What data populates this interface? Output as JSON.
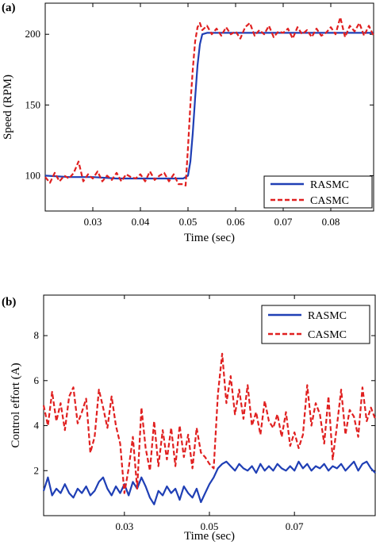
{
  "chart_data": [
    {
      "type": "line",
      "panel_label": "(a)",
      "title": "",
      "xlabel": "Time (sec)",
      "ylabel": "Speed (RPM)",
      "xlim": [
        0.02,
        0.089
      ],
      "ylim": [
        75,
        222
      ],
      "xticks": [
        0.03,
        0.04,
        0.05,
        0.06,
        0.07,
        0.08
      ],
      "xtick_labels": [
        "0.03",
        "0.04",
        "0.05",
        "0.06",
        "0.07",
        "0.08"
      ],
      "yticks": [
        100,
        150,
        200
      ],
      "ytick_labels": [
        "100",
        "150",
        "200"
      ],
      "grid": false,
      "legend_position": "bottom-right",
      "series": [
        {
          "name": "RASMC",
          "color": "#1f3fb5",
          "style": "solid",
          "x": [
            0.02,
            0.025,
            0.03,
            0.035,
            0.04,
            0.045,
            0.049,
            0.05,
            0.0505,
            0.051,
            0.0515,
            0.052,
            0.0525,
            0.053,
            0.054,
            0.056,
            0.06,
            0.065,
            0.07,
            0.075,
            0.08,
            0.085,
            0.089
          ],
          "y": [
            100,
            99,
            99,
            98,
            98,
            98,
            98,
            100,
            110,
            130,
            155,
            178,
            193,
            200,
            201,
            201,
            201,
            201,
            201,
            201,
            201,
            201,
            201
          ]
        },
        {
          "name": "CASMC",
          "color": "#e02020",
          "style": "dashed",
          "x": [
            0.02,
            0.021,
            0.022,
            0.023,
            0.024,
            0.025,
            0.026,
            0.027,
            0.028,
            0.029,
            0.03,
            0.031,
            0.032,
            0.033,
            0.034,
            0.035,
            0.036,
            0.037,
            0.038,
            0.039,
            0.04,
            0.041,
            0.042,
            0.043,
            0.044,
            0.045,
            0.046,
            0.047,
            0.048,
            0.049,
            0.0495,
            0.05,
            0.0505,
            0.051,
            0.0515,
            0.052,
            0.0525,
            0.053,
            0.054,
            0.055,
            0.056,
            0.057,
            0.058,
            0.059,
            0.06,
            0.061,
            0.062,
            0.063,
            0.064,
            0.065,
            0.066,
            0.067,
            0.068,
            0.069,
            0.07,
            0.071,
            0.072,
            0.073,
            0.074,
            0.075,
            0.076,
            0.077,
            0.078,
            0.079,
            0.08,
            0.081,
            0.082,
            0.083,
            0.084,
            0.085,
            0.086,
            0.087,
            0.088,
            0.089
          ],
          "y": [
            99,
            95,
            102,
            96,
            100,
            98,
            102,
            110,
            96,
            101,
            98,
            103,
            96,
            100,
            97,
            102,
            96,
            101,
            99,
            98,
            101,
            96,
            103,
            97,
            100,
            102,
            96,
            101,
            94,
            94,
            93,
            120,
            150,
            175,
            195,
            205,
            208,
            203,
            206,
            200,
            204,
            199,
            205,
            200,
            202,
            197,
            205,
            208,
            199,
            203,
            200,
            206,
            198,
            202,
            201,
            204,
            197,
            205,
            200,
            203,
            198,
            204,
            199,
            201,
            205,
            200,
            212,
            198,
            206,
            202,
            208,
            199,
            206,
            199
          ]
        }
      ]
    },
    {
      "type": "line",
      "panel_label": "(b)",
      "title": "",
      "xlabel": "Time (sec)",
      "ylabel": "Control effort (A)",
      "xlim": [
        0.011,
        0.089
      ],
      "ylim": [
        0,
        9.8
      ],
      "xticks": [
        0.03,
        0.05,
        0.07
      ],
      "xtick_labels": [
        "0.03",
        "0.05",
        "0.07"
      ],
      "yticks": [
        2,
        4,
        6,
        8
      ],
      "ytick_labels": [
        "2",
        "4",
        "6",
        "8"
      ],
      "grid": false,
      "legend_position": "top-right",
      "series": [
        {
          "name": "RASMC",
          "color": "#1f3fb5",
          "style": "solid",
          "x": [
            0.011,
            0.012,
            0.013,
            0.014,
            0.015,
            0.016,
            0.017,
            0.018,
            0.019,
            0.02,
            0.021,
            0.022,
            0.023,
            0.024,
            0.025,
            0.026,
            0.027,
            0.028,
            0.029,
            0.03,
            0.031,
            0.032,
            0.033,
            0.034,
            0.035,
            0.036,
            0.037,
            0.038,
            0.039,
            0.04,
            0.041,
            0.042,
            0.043,
            0.044,
            0.045,
            0.046,
            0.047,
            0.048,
            0.049,
            0.05,
            0.051,
            0.052,
            0.053,
            0.054,
            0.055,
            0.056,
            0.057,
            0.058,
            0.059,
            0.06,
            0.061,
            0.062,
            0.063,
            0.064,
            0.065,
            0.066,
            0.067,
            0.068,
            0.069,
            0.07,
            0.071,
            0.072,
            0.073,
            0.074,
            0.075,
            0.076,
            0.077,
            0.078,
            0.079,
            0.08,
            0.081,
            0.082,
            0.083,
            0.084,
            0.085,
            0.086,
            0.087,
            0.088,
            0.089
          ],
          "y": [
            1.1,
            1.7,
            0.9,
            1.2,
            1.0,
            1.4,
            1.0,
            0.8,
            1.2,
            1.0,
            1.3,
            0.9,
            1.1,
            1.5,
            1.7,
            1.2,
            0.9,
            1.3,
            1.0,
            1.4,
            0.9,
            1.5,
            1.2,
            1.7,
            1.3,
            0.8,
            0.5,
            1.1,
            0.9,
            1.3,
            1.0,
            1.2,
            0.7,
            1.3,
            1.0,
            0.8,
            1.2,
            0.6,
            1.0,
            1.4,
            1.7,
            2.1,
            2.3,
            2.4,
            2.2,
            2.0,
            2.3,
            2.1,
            2.0,
            2.2,
            1.9,
            2.3,
            2.0,
            2.2,
            2.0,
            2.3,
            2.1,
            2.0,
            2.2,
            2.0,
            2.4,
            2.1,
            2.3,
            2.0,
            2.2,
            2.1,
            2.3,
            2.0,
            2.2,
            2.1,
            2.3,
            2.0,
            2.2,
            2.4,
            2.0,
            2.3,
            2.4,
            2.1,
            1.9
          ]
        },
        {
          "name": "CASMC",
          "color": "#e02020",
          "style": "dashed",
          "x": [
            0.011,
            0.012,
            0.013,
            0.014,
            0.015,
            0.016,
            0.017,
            0.018,
            0.019,
            0.02,
            0.021,
            0.022,
            0.023,
            0.024,
            0.025,
            0.026,
            0.027,
            0.028,
            0.029,
            0.03,
            0.031,
            0.032,
            0.033,
            0.034,
            0.035,
            0.036,
            0.037,
            0.038,
            0.039,
            0.04,
            0.041,
            0.042,
            0.043,
            0.044,
            0.045,
            0.046,
            0.047,
            0.048,
            0.049,
            0.05,
            0.051,
            0.052,
            0.053,
            0.054,
            0.055,
            0.056,
            0.057,
            0.058,
            0.059,
            0.06,
            0.061,
            0.062,
            0.063,
            0.064,
            0.065,
            0.066,
            0.067,
            0.068,
            0.069,
            0.07,
            0.071,
            0.072,
            0.073,
            0.074,
            0.075,
            0.076,
            0.077,
            0.078,
            0.079,
            0.08,
            0.081,
            0.082,
            0.083,
            0.084,
            0.085,
            0.086,
            0.087,
            0.088,
            0.089
          ],
          "y": [
            4.9,
            4.0,
            5.5,
            4.2,
            5.0,
            3.8,
            5.3,
            5.7,
            4.1,
            4.6,
            5.2,
            2.8,
            3.5,
            5.6,
            4.8,
            3.9,
            5.3,
            4.0,
            3.2,
            1.0,
            2.1,
            3.5,
            1.2,
            4.8,
            3.0,
            2.0,
            4.2,
            2.2,
            3.8,
            2.5,
            3.9,
            2.2,
            4.0,
            2.6,
            3.6,
            2.1,
            3.9,
            2.8,
            2.6,
            2.3,
            2.1,
            5.4,
            7.2,
            5.0,
            6.2,
            4.5,
            5.6,
            4.3,
            5.8,
            4.0,
            4.6,
            3.6,
            5.1,
            4.2,
            3.9,
            4.5,
            3.5,
            4.6,
            3.1,
            3.7,
            3.0,
            3.6,
            5.8,
            4.0,
            5.0,
            4.5,
            3.2,
            5.3,
            2.5,
            4.0,
            5.6,
            3.6,
            4.7,
            4.4,
            3.5,
            5.7,
            4.2,
            4.8,
            4.3
          ]
        }
      ]
    }
  ]
}
